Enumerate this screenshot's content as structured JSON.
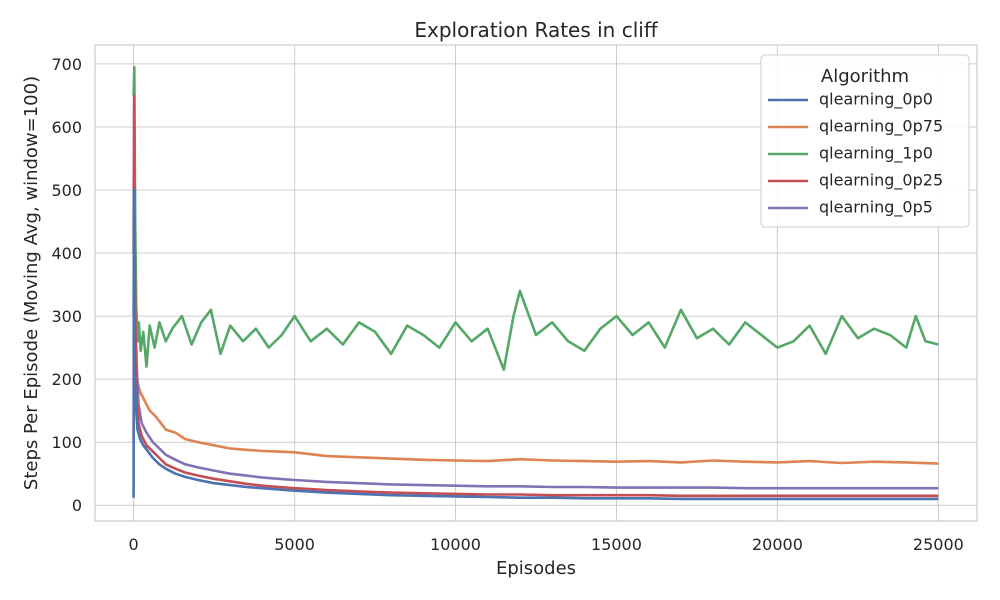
{
  "chart_data": {
    "type": "line",
    "title": "Exploration Rates in cliff",
    "xlabel": "Episodes",
    "ylabel": "Steps Per Episode (Moving Avg, window=100)",
    "xlim": [
      -1200,
      26200
    ],
    "ylim": [
      -25,
      730
    ],
    "xticks": [
      0,
      5000,
      10000,
      15000,
      20000,
      25000
    ],
    "yticks": [
      0,
      100,
      200,
      300,
      400,
      500,
      600,
      700
    ],
    "grid": true,
    "legend": {
      "title": "Algorithm",
      "placement": "top-right",
      "order": [
        "qlearning_0p0",
        "qlearning_0p75",
        "qlearning_1p0",
        "qlearning_0p25",
        "qlearning_0p5"
      ]
    },
    "series": [
      {
        "name": "qlearning_1p0",
        "color": "#55a868",
        "x": [
          0,
          20,
          50,
          80,
          120,
          160,
          220,
          300,
          400,
          500,
          650,
          800,
          1000,
          1200,
          1500,
          1800,
          2100,
          2400,
          2700,
          3000,
          3400,
          3800,
          4200,
          4600,
          5000,
          5500,
          6000,
          6500,
          7000,
          7500,
          8000,
          8500,
          9000,
          9500,
          10000,
          10500,
          11000,
          11500,
          11800,
          12000,
          12500,
          13000,
          13500,
          14000,
          14500,
          15000,
          15500,
          16000,
          16500,
          17000,
          17500,
          18000,
          18500,
          19000,
          19500,
          20000,
          20500,
          21000,
          21500,
          22000,
          22500,
          23000,
          23500,
          24000,
          24300,
          24600,
          25000
        ],
        "y": [
          650,
          695,
          450,
          320,
          260,
          290,
          245,
          275,
          220,
          285,
          250,
          290,
          260,
          280,
          300,
          255,
          290,
          310,
          240,
          285,
          260,
          280,
          250,
          270,
          300,
          260,
          280,
          255,
          290,
          275,
          240,
          285,
          270,
          250,
          290,
          260,
          280,
          215,
          300,
          340,
          270,
          290,
          260,
          245,
          280,
          300,
          270,
          290,
          250,
          310,
          265,
          280,
          255,
          290,
          270,
          250,
          260,
          285,
          240,
          300,
          265,
          280,
          270,
          250,
          300,
          260,
          255
        ]
      },
      {
        "name": "qlearning_0p75",
        "color": "#dd8452",
        "x": [
          0,
          20,
          50,
          100,
          200,
          300,
          500,
          700,
          1000,
          1300,
          1600,
          2000,
          2500,
          3000,
          3500,
          4000,
          4500,
          5000,
          6000,
          7000,
          8000,
          9000,
          10000,
          11000,
          12000,
          13000,
          14000,
          15000,
          16000,
          17000,
          18000,
          19000,
          20000,
          21000,
          22000,
          23000,
          24000,
          25000
        ],
        "y": [
          100,
          280,
          230,
          200,
          180,
          170,
          150,
          140,
          120,
          115,
          105,
          100,
          95,
          90,
          88,
          86,
          85,
          84,
          78,
          76,
          74,
          72,
          71,
          70,
          73,
          71,
          70,
          69,
          70,
          68,
          71,
          69,
          68,
          70,
          67,
          69,
          68,
          66
        ]
      },
      {
        "name": "qlearning_0p5",
        "color": "#8172b3",
        "x": [
          0,
          15,
          30,
          60,
          100,
          150,
          250,
          400,
          600,
          800,
          1000,
          1300,
          1600,
          2000,
          2500,
          3000,
          3500,
          4000,
          4500,
          5000,
          6000,
          7000,
          8000,
          9000,
          10000,
          11000,
          12000,
          13000,
          14000,
          15000,
          16000,
          17000,
          18000,
          19000,
          20000,
          21000,
          22000,
          23000,
          24000,
          25000
        ],
        "y": [
          300,
          500,
          350,
          280,
          220,
          160,
          130,
          115,
          100,
          90,
          80,
          72,
          65,
          60,
          55,
          50,
          47,
          44,
          42,
          40,
          37,
          35,
          33,
          32,
          31,
          30,
          30,
          29,
          29,
          28,
          28,
          28,
          28,
          27,
          27,
          27,
          27,
          27,
          27,
          27
        ]
      },
      {
        "name": "qlearning_0p25",
        "color": "#c44e52",
        "x": [
          0,
          15,
          30,
          60,
          100,
          150,
          250,
          400,
          600,
          800,
          1000,
          1300,
          1600,
          2000,
          2500,
          3000,
          3500,
          4000,
          4500,
          5000,
          6000,
          7000,
          8000,
          9000,
          10000,
          11000,
          12000,
          13000,
          14000,
          15000,
          16000,
          17000,
          18000,
          19000,
          20000,
          21000,
          22000,
          23000,
          24000,
          25000
        ],
        "y": [
          400,
          650,
          420,
          260,
          180,
          130,
          110,
          95,
          85,
          75,
          65,
          58,
          52,
          47,
          42,
          38,
          34,
          31,
          29,
          27,
          24,
          22,
          20,
          19,
          18,
          17,
          17,
          16,
          16,
          16,
          16,
          15,
          15,
          15,
          15,
          15,
          15,
          15,
          15,
          15
        ]
      },
      {
        "name": "qlearning_0p0",
        "color": "#4c72b0",
        "x": [
          0,
          8,
          20,
          40,
          80,
          120,
          200,
          300,
          450,
          600,
          800,
          1000,
          1300,
          1600,
          2000,
          2500,
          3000,
          3500,
          4000,
          4500,
          5000,
          6000,
          7000,
          8000,
          9000,
          10000,
          11000,
          12000,
          13000,
          14000,
          15000,
          16000,
          17000,
          18000,
          19000,
          20000,
          21000,
          22000,
          23000,
          24000,
          25000
        ],
        "y": [
          12,
          500,
          300,
          200,
          150,
          120,
          105,
          95,
          85,
          75,
          65,
          58,
          50,
          45,
          40,
          35,
          32,
          29,
          27,
          25,
          23,
          20,
          18,
          16,
          15,
          14,
          13,
          12,
          12,
          11,
          11,
          11,
          10,
          10,
          10,
          10,
          10,
          10,
          10,
          10,
          10
        ]
      }
    ]
  }
}
